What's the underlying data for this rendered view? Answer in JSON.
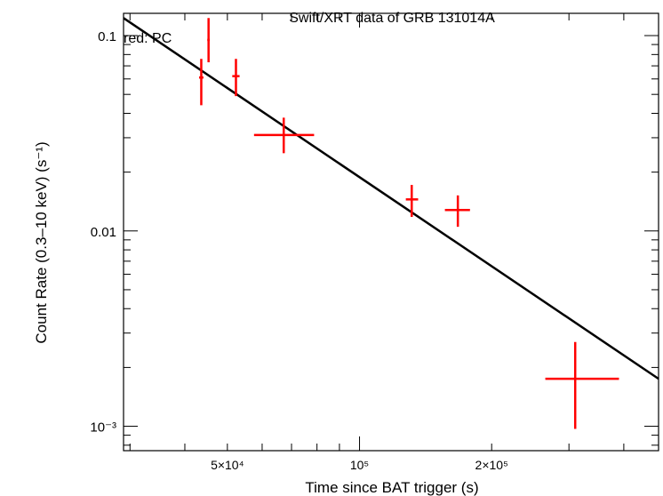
{
  "chart_data": {
    "type": "scatter",
    "title": "Swift/XRT data of GRB 131014A",
    "subtitle": "red: PC",
    "xlabel": "Time since BAT trigger (s)",
    "ylabel": "Count Rate (0.3–10 keV) (s⁻¹)",
    "xscale": "log",
    "yscale": "log",
    "xlim": [
      29000,
      480000
    ],
    "ylim": [
      0.00075,
      0.13
    ],
    "x_ticks": [
      {
        "value": 50000,
        "label": "5×10⁴"
      },
      {
        "value": 100000,
        "label": "10⁵"
      },
      {
        "value": 200000,
        "label": "2×10⁵"
      }
    ],
    "y_ticks": [
      {
        "value": 0.1,
        "label": "0.1"
      },
      {
        "value": 0.01,
        "label": "0.01"
      },
      {
        "value": 0.001,
        "label": "10⁻³"
      }
    ],
    "series": [
      {
        "color": "#ff0000",
        "points": [
          {
            "x": 43600,
            "xerr": [
              43100,
              44100
            ],
            "y": 0.061,
            "yerr": [
              0.044,
              0.076
            ]
          },
          {
            "x": 45300,
            "xerr": [
              45000,
              45600
            ],
            "y": 0.095,
            "yerr": [
              0.073,
              0.123
            ]
          },
          {
            "x": 52300,
            "xerr": [
              51300,
              53300
            ],
            "y": 0.062,
            "yerr": [
              0.049,
              0.076
            ]
          },
          {
            "x": 67200,
            "xerr": [
              57500,
              78800
            ],
            "y": 0.031,
            "yerr": [
              0.025,
              0.038
            ]
          },
          {
            "x": 131500,
            "xerr": [
              127500,
              136000
            ],
            "y": 0.0145,
            "yerr": [
              0.0118,
              0.0172
            ]
          },
          {
            "x": 167500,
            "xerr": [
              156500,
              178500
            ],
            "y": 0.0128,
            "yerr": [
              0.0105,
              0.0152
            ]
          },
          {
            "x": 310000,
            "xerr": [
              265000,
              390000
            ],
            "y": 0.00175,
            "yerr": [
              0.00097,
              0.0027
            ]
          }
        ]
      }
    ],
    "model_line": {
      "color": "#000000",
      "points": [
        [
          29000,
          0.123
        ],
        [
          480000,
          0.00175
        ]
      ]
    }
  }
}
